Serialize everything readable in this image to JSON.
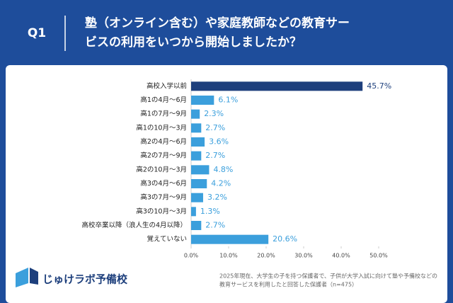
{
  "badge": "Q1",
  "chart_data": {
    "type": "bar",
    "orientation": "horizontal",
    "title": "塾（オンライン含む）や家庭教師などの教育サービスの利用をいつから開始しましたか？",
    "categories": [
      "高校入学以前",
      "高1の4月～6月",
      "高1の7月～9月",
      "高1の10月～3月",
      "高2の4月～6月",
      "高2の7月～9月",
      "高2の10月～3月",
      "高3の4月～6月",
      "高3の7月～9月",
      "高3の10月～3月",
      "高校卒業以降（浪人生の4月以降）",
      "覚えていない"
    ],
    "values": [
      45.7,
      6.1,
      2.3,
      2.7,
      3.6,
      2.7,
      4.8,
      4.2,
      3.2,
      1.3,
      2.7,
      20.6
    ],
    "value_labels": [
      "45.7%",
      "6.1%",
      "2.3%",
      "2.7%",
      "3.6%",
      "2.7%",
      "4.8%",
      "4.2%",
      "3.2%",
      "1.3%",
      "2.7%",
      "20.6%"
    ],
    "colors": [
      "#1d3f7c",
      "#3b9fdc",
      "#3b9fdc",
      "#3b9fdc",
      "#3b9fdc",
      "#3b9fdc",
      "#3b9fdc",
      "#3b9fdc",
      "#3b9fdc",
      "#3b9fdc",
      "#3b9fdc",
      "#3b9fdc"
    ],
    "xlim": [
      0,
      50
    ],
    "xticks": [
      {
        "value": 0,
        "label": "0.0%"
      },
      {
        "value": 10,
        "label": "10.0%"
      },
      {
        "value": 20,
        "label": "20.0%"
      },
      {
        "value": 30,
        "label": "30.0%"
      },
      {
        "value": 40,
        "label": "40.0%"
      },
      {
        "value": 50,
        "label": "50.0%"
      }
    ],
    "note": [
      "2025年現在、大学生の子を持つ保護者で、子供が大学入試に向けて塾や予備校などの",
      "教育サービスを利用したと回答した保護者（n=475）"
    ]
  },
  "logo": "じゅけラボ予備校"
}
